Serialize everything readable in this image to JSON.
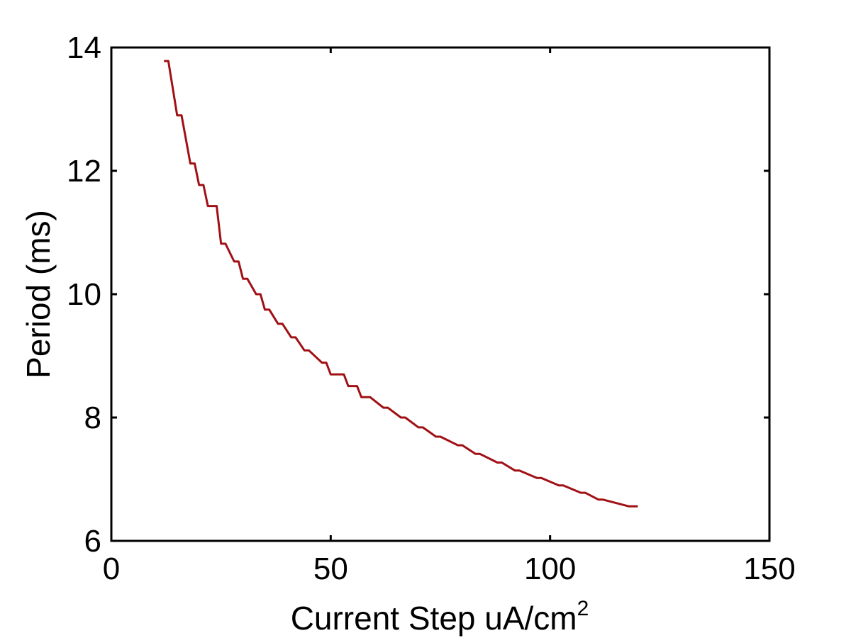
{
  "chart_data": {
    "type": "line",
    "xlabel": "Current Step uA/cm",
    "xlabel_superscript": "2",
    "ylabel": "Period (ms)",
    "xlim": [
      0,
      150
    ],
    "ylim": [
      6,
      14
    ],
    "xticks": [
      "0",
      "50",
      "100",
      "150"
    ],
    "yticks": [
      "6",
      "8",
      "10",
      "12",
      "14"
    ],
    "grid": false,
    "line_color": "#a01015",
    "series": [
      {
        "x": [
          12,
          13,
          15,
          16,
          18,
          19,
          20,
          21,
          22,
          24,
          25,
          26,
          28,
          29,
          30,
          31,
          33,
          34,
          35,
          36,
          38,
          39,
          41,
          42,
          44,
          45,
          48,
          49,
          50,
          53,
          54,
          56,
          57,
          59,
          62,
          63,
          66,
          67,
          70,
          71,
          74,
          75,
          79,
          80,
          83,
          84,
          88,
          89,
          92,
          93,
          97,
          98,
          102,
          103,
          107,
          108,
          111,
          112,
          118,
          120
        ],
        "y": [
          13.78,
          13.78,
          12.9,
          12.9,
          12.12,
          12.12,
          11.77,
          11.77,
          11.43,
          11.43,
          10.82,
          10.82,
          10.53,
          10.53,
          10.25,
          10.25,
          10.0,
          10.0,
          9.75,
          9.75,
          9.52,
          9.52,
          9.3,
          9.3,
          9.09,
          9.09,
          8.89,
          8.89,
          8.7,
          8.7,
          8.51,
          8.51,
          8.33,
          8.33,
          8.16,
          8.16,
          8.0,
          8.0,
          7.84,
          7.84,
          7.69,
          7.69,
          7.55,
          7.55,
          7.41,
          7.41,
          7.27,
          7.27,
          7.14,
          7.14,
          7.02,
          7.02,
          6.9,
          6.9,
          6.78,
          6.78,
          6.67,
          6.67,
          6.56,
          6.56
        ]
      }
    ]
  }
}
